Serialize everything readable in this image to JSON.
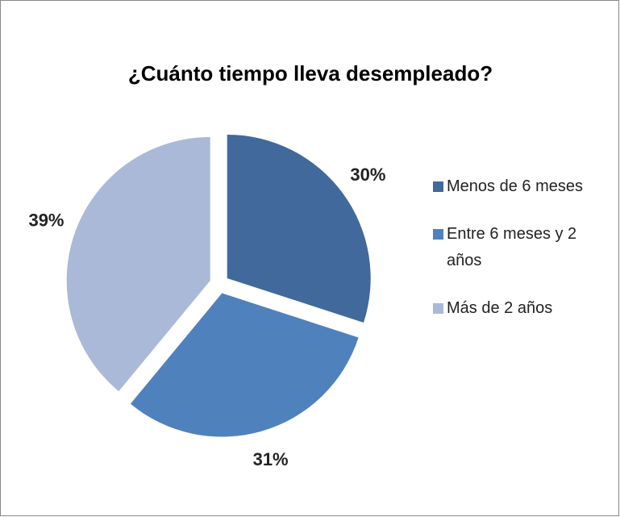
{
  "chart_data": {
    "type": "pie",
    "title": "¿Cuánto tiempo lleva desempleado?",
    "categories": [
      "Menos de 6 meses",
      "Entre 6 meses y 2 años",
      "Más de 2 años"
    ],
    "values": [
      30,
      31,
      39
    ],
    "value_labels": [
      "30%",
      "31%",
      "39%"
    ],
    "colors": [
      "#41699b",
      "#4f81bd",
      "#aab9d7"
    ],
    "legend": "right"
  }
}
